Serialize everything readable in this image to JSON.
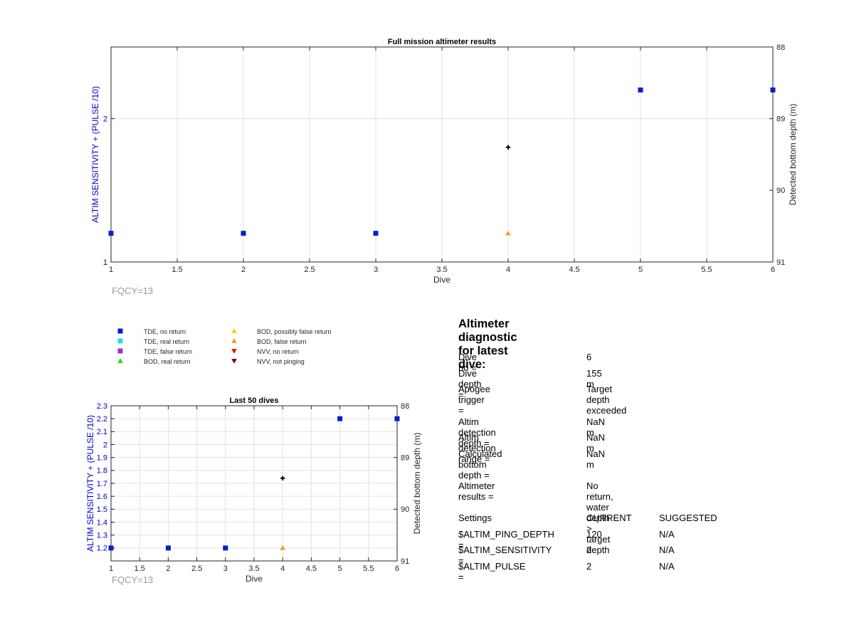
{
  "colors": {
    "tde_no_return": "#0a1ec8",
    "tde_real_return": "#28d8f0",
    "tde_false_return": "#8a3ad0",
    "bod_real_return": "#18e018",
    "bod_possibly_false": "#f5d20a",
    "bod_false_return": "#f0a020",
    "nvv_no_return": "#e01010",
    "nvv_not_pinging": "#800000",
    "left_axis": "#0000c8",
    "fqcy": "#9a9a9a",
    "grid": "#e3e3e3"
  },
  "chart_data": [
    {
      "type": "scatter",
      "title": "Full mission altimeter results",
      "xlabel": "Dive",
      "ylabel_left": "ALTIM SENSITIVITY + (PULSE /10)",
      "ylabel_right": "Detected bottom depth (m)",
      "xlim": [
        1,
        6
      ],
      "ylim_left": [
        1,
        2.5
      ],
      "ylim_right": [
        88,
        91
      ],
      "right_axis_reversed": true,
      "x_ticks": [
        "1",
        "1.5",
        "2",
        "2.5",
        "3",
        "3.5",
        "4",
        "4.5",
        "5",
        "5.5",
        "6"
      ],
      "y_left_ticks": [
        "1",
        "2"
      ],
      "y_right_ticks": [
        "88",
        "89",
        "90",
        "91"
      ],
      "grid": true,
      "annotation": "FQCY=13",
      "series": [
        {
          "name": "TDE, no return",
          "marker": "square",
          "color_key": "tde_no_return",
          "axis": "left",
          "x": [
            1,
            2,
            3,
            5,
            6
          ],
          "y": [
            1.2,
            1.2,
            1.2,
            2.2,
            2.2
          ]
        },
        {
          "name": "BOD, false return",
          "marker": "triangle-up",
          "color_key": "bod_false_return",
          "axis": "left",
          "x": [
            4
          ],
          "y": [
            1.2
          ]
        },
        {
          "name": "",
          "marker": "plus",
          "color_key": "",
          "axis": "right",
          "x": [
            4
          ],
          "y": [
            89.4
          ]
        }
      ]
    },
    {
      "type": "scatter",
      "title": "Last 50 dives",
      "xlabel": "Dive",
      "ylabel_left": "ALTIM SENSITIVITY + (PULSE /10)",
      "ylabel_right": "Detected bottom depth (m)",
      "xlim": [
        1,
        6
      ],
      "ylim_left": [
        1.1,
        2.3
      ],
      "ylim_right": [
        88,
        91
      ],
      "right_axis_reversed": true,
      "x_ticks": [
        "1",
        "1.5",
        "2",
        "2.5",
        "3",
        "3.5",
        "4",
        "4.5",
        "5",
        "5.5",
        "6"
      ],
      "y_left_ticks": [
        "1.2",
        "1.3",
        "1.4",
        "1.5",
        "1.6",
        "1.7",
        "1.8",
        "1.9",
        "2",
        "2.1",
        "2.2",
        "2.3"
      ],
      "y_right_ticks": [
        "88",
        "89",
        "90",
        "91"
      ],
      "grid": true,
      "annotation": "FQCY=13",
      "series": [
        {
          "name": "TDE, no return",
          "marker": "square",
          "color_key": "tde_no_return",
          "axis": "left",
          "x": [
            1,
            2,
            3,
            5,
            6
          ],
          "y": [
            1.2,
            1.2,
            1.2,
            2.2,
            2.2
          ]
        },
        {
          "name": "BOD, false return",
          "marker": "triangle-up",
          "color_key": "bod_false_return",
          "axis": "left",
          "x": [
            4
          ],
          "y": [
            1.2
          ]
        },
        {
          "name": "",
          "marker": "plus",
          "color_key": "",
          "axis": "right",
          "x": [
            4
          ],
          "y": [
            89.4
          ]
        }
      ]
    }
  ],
  "legend": {
    "entries": [
      {
        "label": "TDE, no return",
        "marker": "square",
        "color_key": "tde_no_return"
      },
      {
        "label": "TDE, real return",
        "marker": "square",
        "color_key": "tde_real_return"
      },
      {
        "label": "TDE, false return",
        "marker": "square",
        "color_key": "tde_false_return"
      },
      {
        "label": "BOD, real return",
        "marker": "triangle-up",
        "color_key": "bod_real_return"
      },
      {
        "label": "BOD, possibly false return",
        "marker": "triangle-up",
        "color_key": "bod_possibly_false"
      },
      {
        "label": "BOD, false return",
        "marker": "triangle-up",
        "color_key": "bod_false_return"
      },
      {
        "label": "NVV, no return",
        "marker": "triangle-down",
        "color_key": "nvv_no_return"
      },
      {
        "label": "NVV, not pinging",
        "marker": "triangle-down",
        "color_key": "nvv_not_pinging"
      }
    ]
  },
  "diagnostic": {
    "title": "Altimeter diagnostic for latest dive:",
    "dive_no_label": "Dive no =",
    "dive_no_value": "6",
    "dive_depth_label": "Dive depth =",
    "dive_depth_value": "155 m",
    "apogee_label": "Apogee trigger =",
    "apogee_value": "Target depth exceeded",
    "altim_det_depth_label": "Altim detection depth =",
    "altim_det_depth_value": "NaN m",
    "altim_det_range_label": "Altim detection range =",
    "altim_det_range_value": "NaN m",
    "calc_bottom_label": "Calculated bottom depth =",
    "calc_bottom_value": "NaN m",
    "results_label": "Altimeter results =",
    "results_value": "No return, water depth > target depth",
    "settings_header": "Settings",
    "current_header": "CURRENT",
    "suggested_header": "SUGGESTED",
    "settings": [
      {
        "name": "$ALTIM_PING_DEPTH =",
        "current": "120",
        "suggested": "N/A"
      },
      {
        "name": "$ALTIM_SENSITIVITY =",
        "current": "2",
        "suggested": "N/A"
      },
      {
        "name": "$ALTIM_PULSE =",
        "current": "2",
        "suggested": "N/A"
      }
    ]
  }
}
